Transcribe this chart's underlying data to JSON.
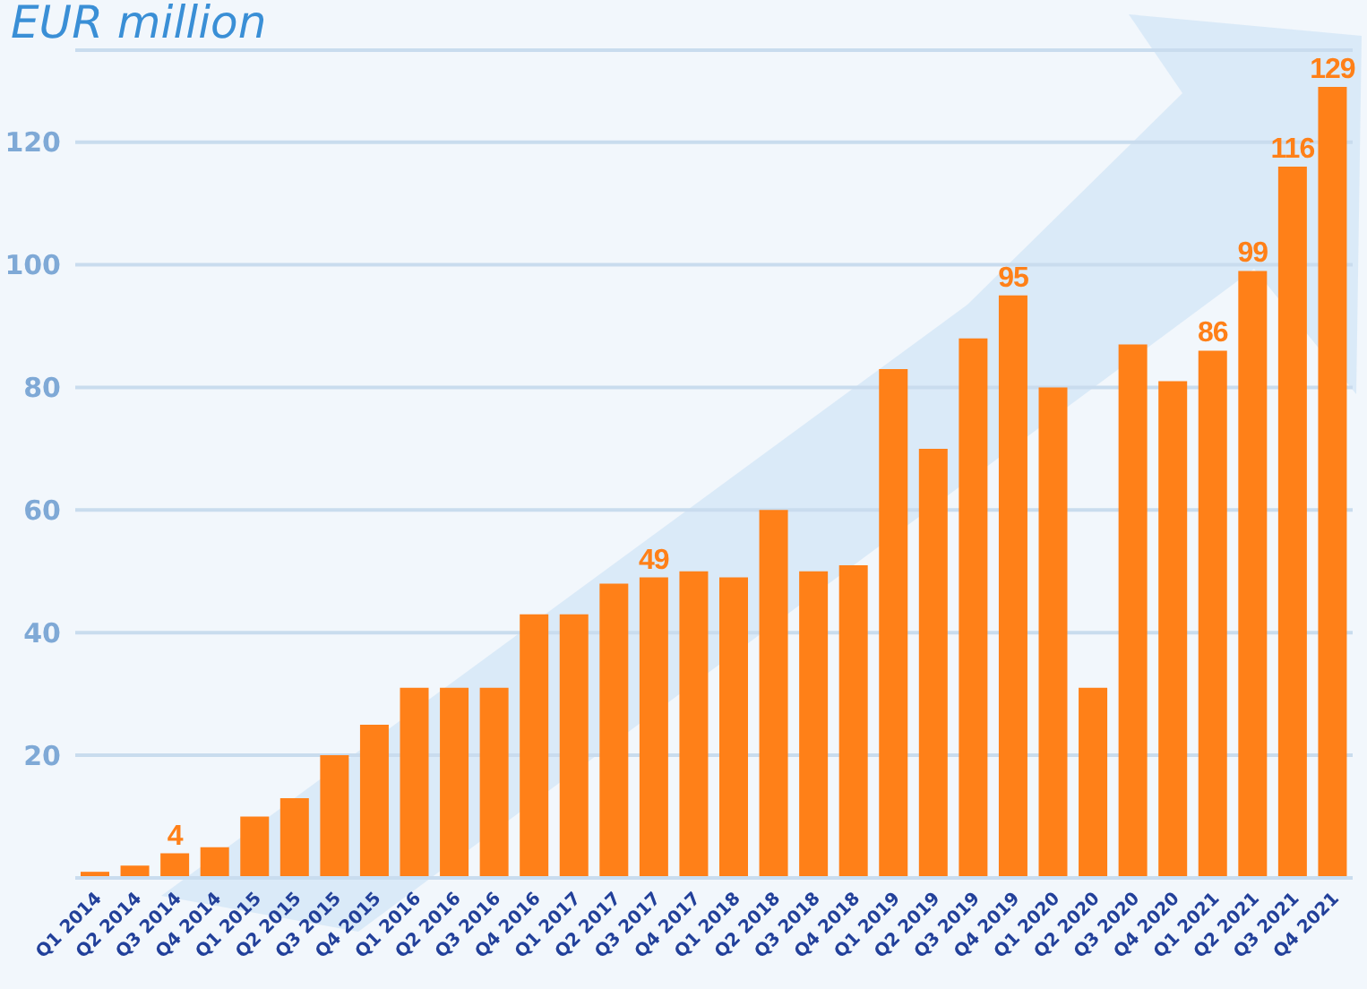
{
  "chart_data": {
    "type": "bar",
    "title": "EUR million",
    "categories": [
      "Q1 2014",
      "Q2 2014",
      "Q3 2014",
      "Q4 2014",
      "Q1 2015",
      "Q2 2015",
      "Q3 2015",
      "Q4 2015",
      "Q1 2016",
      "Q2 2016",
      "Q3 2016",
      "Q4 2016",
      "Q1 2017",
      "Q2 2017",
      "Q3 2017",
      "Q4 2017",
      "Q1 2018",
      "Q2 2018",
      "Q3 2018",
      "Q4 2018",
      "Q1 2019",
      "Q2 2019",
      "Q3 2019",
      "Q4 2019",
      "Q1 2020",
      "Q2 2020",
      "Q3 2020",
      "Q4 2020",
      "Q1 2021",
      "Q2 2021",
      "Q3 2021",
      "Q4 2021"
    ],
    "values": [
      1,
      2,
      4,
      5,
      10,
      13,
      20,
      25,
      31,
      31,
      31,
      43,
      43,
      48,
      49,
      50,
      49,
      60,
      50,
      51,
      83,
      70,
      88,
      95,
      80,
      31,
      87,
      81,
      86,
      99,
      116,
      129
    ],
    "value_labels": [
      null,
      null,
      "4",
      null,
      null,
      null,
      null,
      null,
      null,
      null,
      null,
      null,
      null,
      null,
      "49",
      null,
      null,
      null,
      null,
      null,
      null,
      null,
      null,
      "95",
      null,
      null,
      null,
      null,
      "86",
      "99",
      "116",
      "129"
    ],
    "color": "#ff8018",
    "ylim": [
      0,
      135
    ],
    "yticks": [
      {
        "value": 0,
        "label": null
      },
      20,
      40,
      60,
      80,
      100,
      120
    ],
    "grid": "y"
  }
}
